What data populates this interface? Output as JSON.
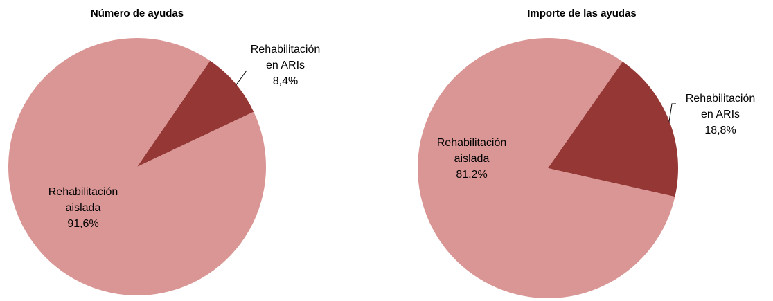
{
  "chart_data": [
    {
      "type": "pie",
      "title": "Número de ayudas",
      "categories": [
        "Rehabilitación aislada",
        "Rehabilitación en ARIs"
      ],
      "values": [
        91.6,
        8.4
      ],
      "value_labels": [
        "91,6%",
        "8,4%"
      ],
      "colors": [
        "#d99694",
        "#953735"
      ]
    },
    {
      "type": "pie",
      "title": "Importe de las ayudas",
      "categories": [
        "Rehabilitación aislada",
        "Rehabilitación en ARIs"
      ],
      "values": [
        81.2,
        18.8
      ],
      "value_labels": [
        "81,2%",
        "18,8%"
      ],
      "colors": [
        "#d99694",
        "#953735"
      ]
    }
  ]
}
